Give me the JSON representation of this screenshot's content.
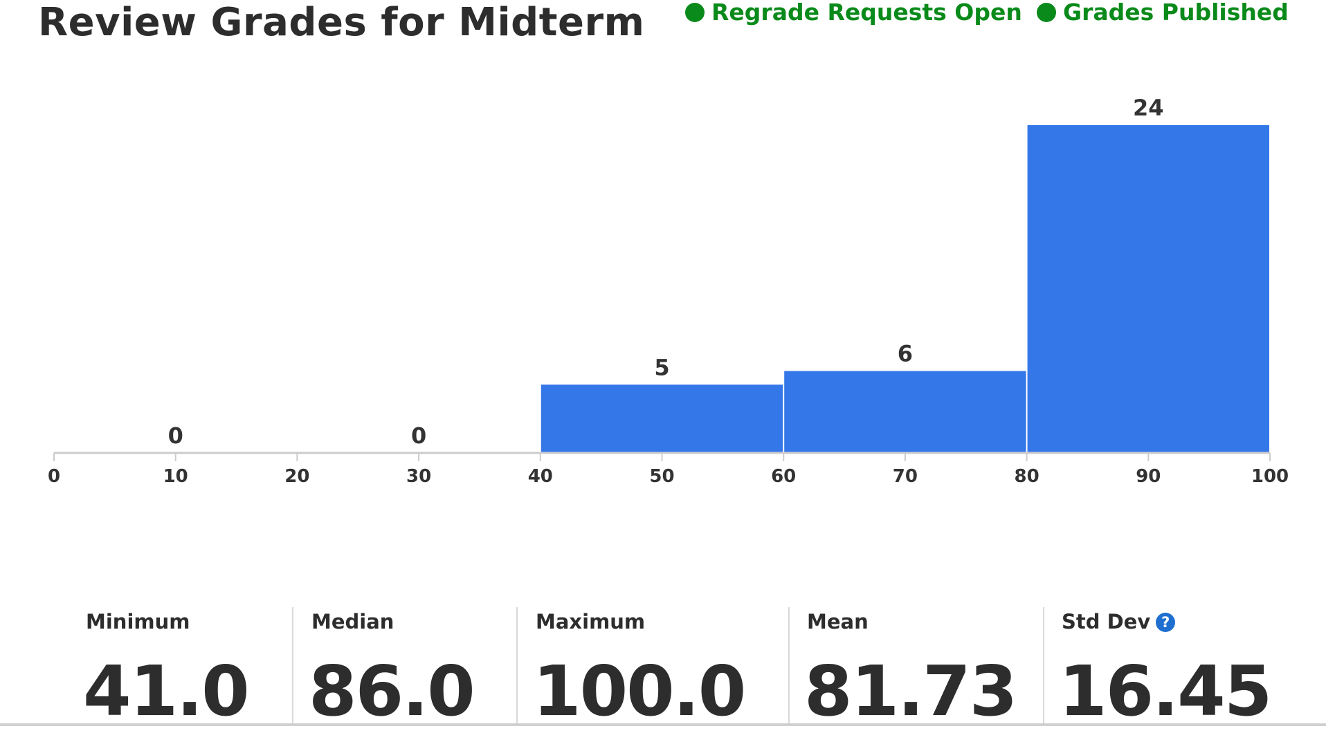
{
  "page": {
    "title": "Review Grades for Midterm"
  },
  "status": {
    "color": "#0a8a1a",
    "items": [
      {
        "label": "Regrade Requests Open",
        "icon": "status-dot-icon"
      },
      {
        "label": "Grades Published",
        "icon": "status-dot-icon"
      }
    ]
  },
  "chart_data": {
    "type": "bar",
    "title": "",
    "xlabel": "",
    "ylabel": "",
    "x_ticks": [
      "0",
      "10",
      "20",
      "30",
      "40",
      "50",
      "60",
      "70",
      "80",
      "90",
      "100"
    ],
    "bins": [
      [
        0,
        20
      ],
      [
        20,
        40
      ],
      [
        40,
        60
      ],
      [
        60,
        80
      ],
      [
        80,
        100
      ]
    ],
    "values": [
      0,
      0,
      5,
      6,
      24
    ],
    "xlim": [
      0,
      100
    ],
    "ylim": [
      0,
      24
    ],
    "bar_color": "#3477e8",
    "grid": false
  },
  "stats": {
    "items": [
      {
        "label": "Minimum",
        "value": "41.0"
      },
      {
        "label": "Median",
        "value": "86.0"
      },
      {
        "label": "Maximum",
        "value": "100.0"
      },
      {
        "label": "Mean",
        "value": "81.73"
      },
      {
        "label": "Std Dev",
        "value": "16.45",
        "help_icon": "help-icon",
        "help_glyph": "?",
        "help_color": "#1f6fd0"
      }
    ]
  }
}
